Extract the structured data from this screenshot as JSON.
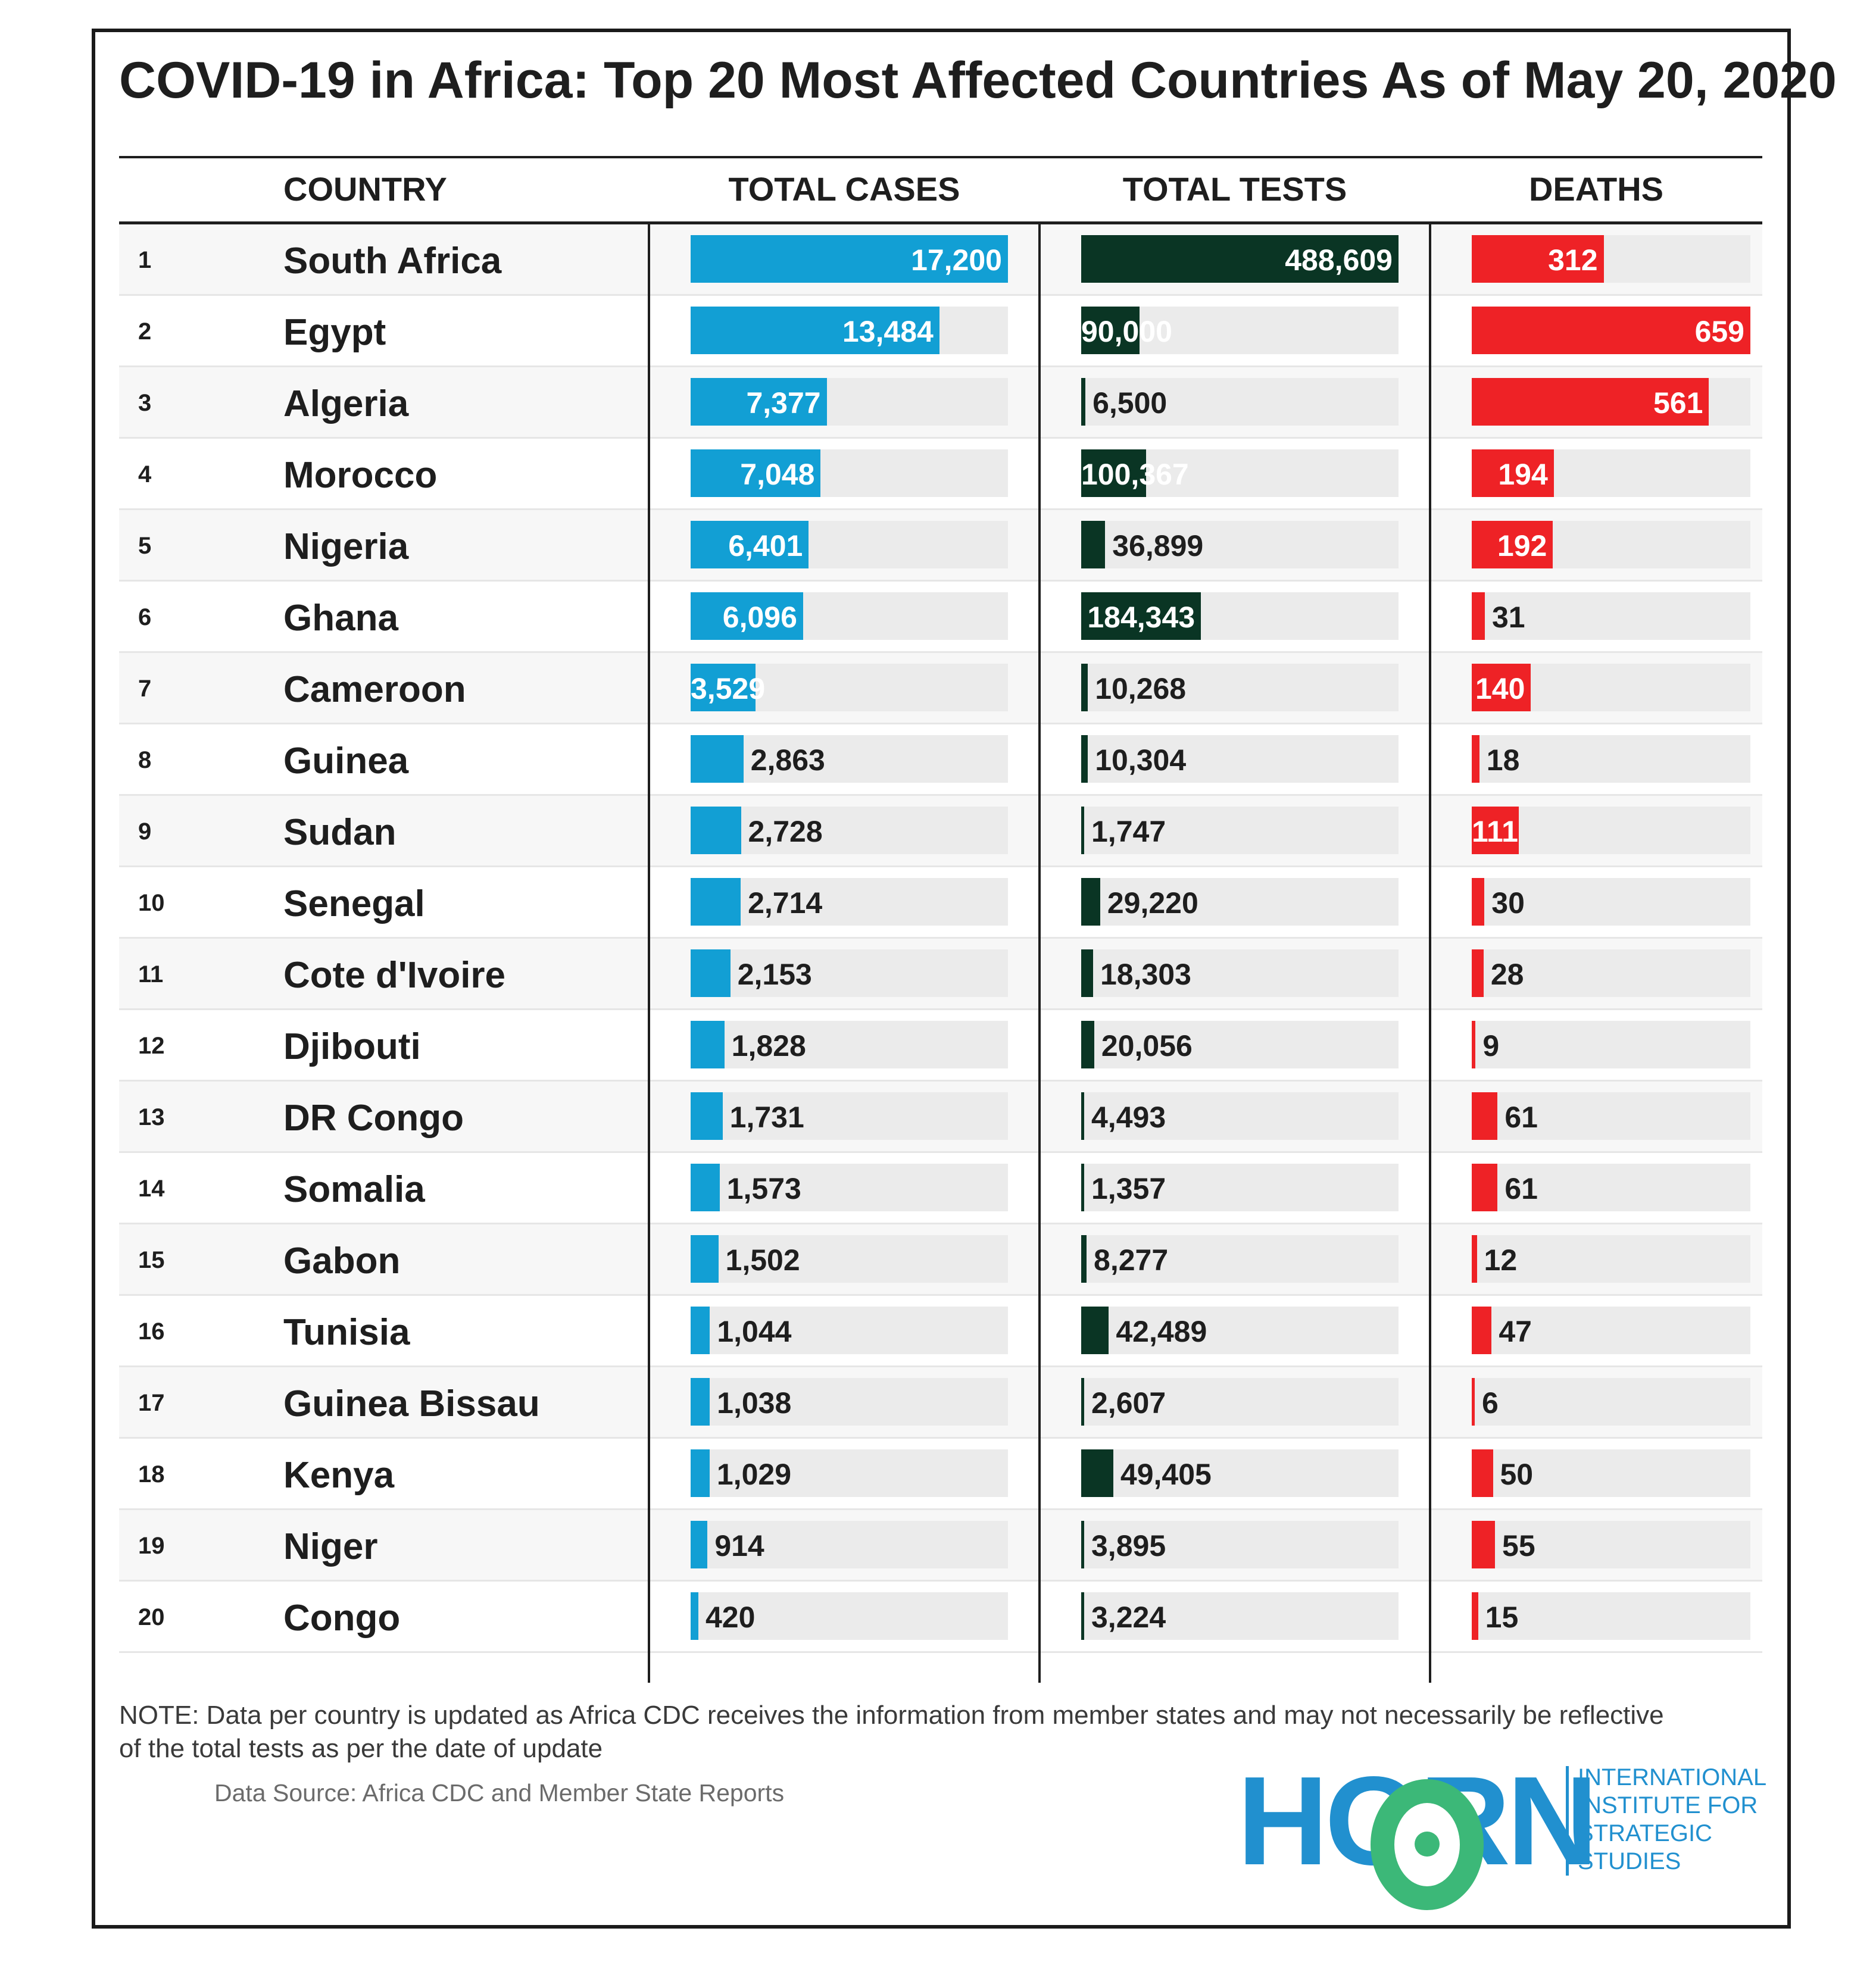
{
  "title": "COVID-19 in Africa: Top 20 Most Affected Countries As of May 20, 2020",
  "headers": {
    "country": "COUNTRY",
    "cases": "TOTAL CASES",
    "tests": "TOTAL TESTS",
    "deaths": "DEATHS"
  },
  "colors": {
    "cases": "#129fd4",
    "tests": "#0a3524",
    "deaths": "#ee2226",
    "track": "#ebebeb",
    "logo_blue": "#2190cf",
    "logo_green": "#3cb878"
  },
  "chart_data": {
    "type": "table",
    "title": "COVID-19 in Africa: Top 20 Most Affected Countries As of May 20, 2020",
    "columns": [
      "COUNTRY",
      "TOTAL CASES",
      "TOTAL TESTS",
      "DEATHS"
    ],
    "rows": [
      {
        "rank": "1",
        "country": "South Africa",
        "cases": 17200,
        "tests": 488609,
        "deaths": 312
      },
      {
        "rank": "2",
        "country": "Egypt",
        "cases": 13484,
        "tests": 90000,
        "deaths": 659
      },
      {
        "rank": "3",
        "country": "Algeria",
        "cases": 7377,
        "tests": 6500,
        "deaths": 561
      },
      {
        "rank": "4",
        "country": "Morocco",
        "cases": 7048,
        "tests": 100367,
        "deaths": 194
      },
      {
        "rank": "5",
        "country": "Nigeria",
        "cases": 6401,
        "tests": 36899,
        "deaths": 192
      },
      {
        "rank": "6",
        "country": "Ghana",
        "cases": 6096,
        "tests": 184343,
        "deaths": 31
      },
      {
        "rank": "7",
        "country": "Cameroon",
        "cases": 3529,
        "tests": 10268,
        "deaths": 140
      },
      {
        "rank": "8",
        "country": "Guinea",
        "cases": 2863,
        "tests": 10304,
        "deaths": 18
      },
      {
        "rank": "9",
        "country": "Sudan",
        "cases": 2728,
        "tests": 1747,
        "deaths": 111
      },
      {
        "rank": "10",
        "country": "Senegal",
        "cases": 2714,
        "tests": 29220,
        "deaths": 30
      },
      {
        "rank": "11",
        "country": "Cote d'Ivoire",
        "cases": 2153,
        "tests": 18303,
        "deaths": 28
      },
      {
        "rank": "12",
        "country": "Djibouti",
        "cases": 1828,
        "tests": 20056,
        "deaths": 9
      },
      {
        "rank": "13",
        "country": "DR Congo",
        "cases": 1731,
        "tests": 4493,
        "deaths": 61
      },
      {
        "rank": "14",
        "country": "Somalia",
        "cases": 1573,
        "tests": 1357,
        "deaths": 61
      },
      {
        "rank": "15",
        "country": "Gabon",
        "cases": 1502,
        "tests": 8277,
        "deaths": 12
      },
      {
        "rank": "16",
        "country": "Tunisia",
        "cases": 1044,
        "tests": 42489,
        "deaths": 47
      },
      {
        "rank": "17",
        "country": "Guinea Bissau",
        "cases": 1038,
        "tests": 2607,
        "deaths": 6
      },
      {
        "rank": "18",
        "country": "Kenya",
        "cases": 1029,
        "tests": 49405,
        "deaths": 50
      },
      {
        "rank": "19",
        "country": "Niger",
        "cases": 914,
        "tests": 3895,
        "deaths": 55
      },
      {
        "rank": "20",
        "country": "Congo",
        "cases": 420,
        "tests": 3224,
        "deaths": 15
      }
    ]
  },
  "note": "NOTE: Data per country is updated as Africa CDC receives the information from member states and may not necessarily be reflective of the total tests as per the date of update",
  "source": "Data Source: Africa CDC and Member State Reports",
  "logo": {
    "wordmark": "HORN",
    "lines": [
      "INTERNATIONAL",
      "INSTITUTE FOR",
      "STRATEGIC",
      "STUDIES"
    ]
  }
}
